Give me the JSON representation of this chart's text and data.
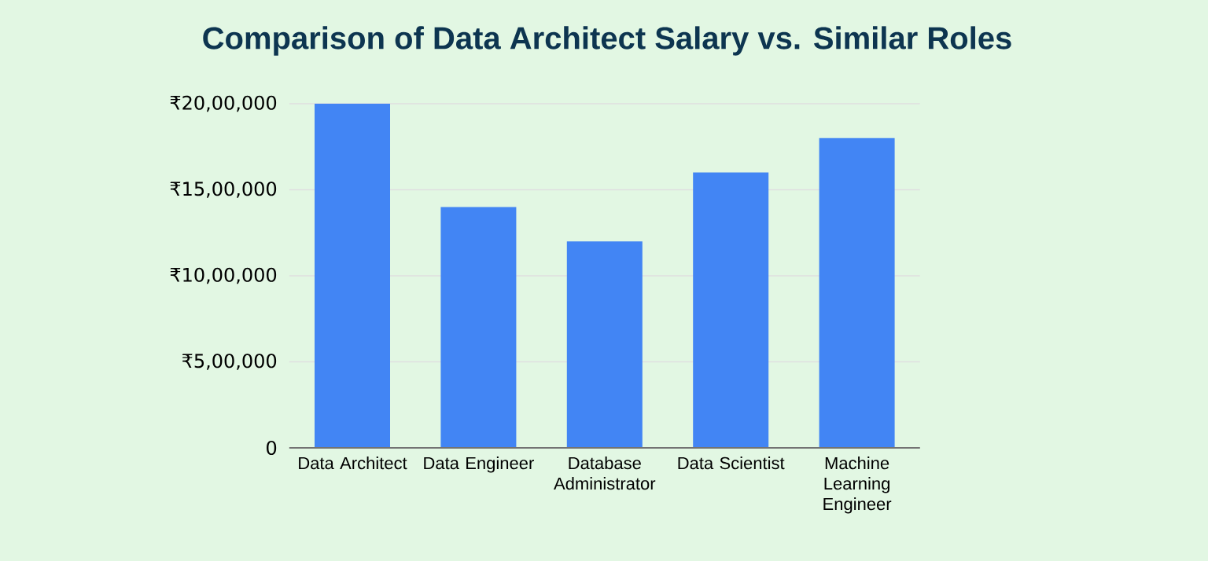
{
  "chart_data": {
    "type": "bar",
    "title": "Comparison of Data Architect Salary vs. Similar Roles",
    "categories": [
      "Data Architect",
      "Data Engineer",
      "Database Administrator",
      "Data Scientist",
      "Machine Learning Engineer"
    ],
    "values": [
      2000000,
      1400000,
      1200000,
      1600000,
      1800000
    ],
    "color": "#4285f4",
    "ylim": [
      0,
      2000000
    ],
    "yticks": [
      0,
      {
        "value": 500000,
        "label": "₹5,00,000"
      },
      {
        "value": 1000000,
        "label": "₹10,00,000"
      },
      {
        "value": 1500000,
        "label": "₹15,00,000"
      },
      {
        "value": 2000000,
        "label": "₹20,00,000"
      }
    ],
    "grid": "y"
  }
}
